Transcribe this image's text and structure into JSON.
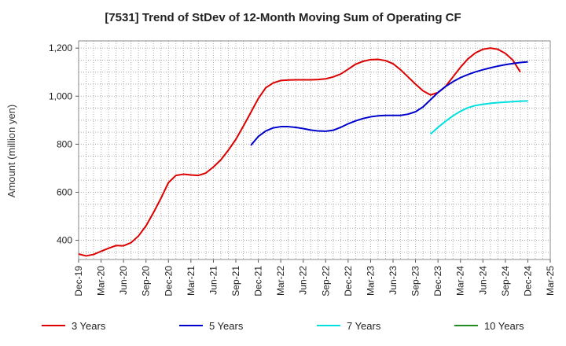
{
  "chart_data": {
    "type": "line",
    "title": "[7531]  Trend of StDev of 12-Month Moving Sum of Operating CF",
    "xlabel": "",
    "ylabel": "Amount (million yen)",
    "ylim": [
      320,
      1230
    ],
    "yticks": [
      400,
      600,
      800,
      1000,
      1200
    ],
    "ytick_labels": [
      "400",
      "600",
      "800",
      "1,000",
      "1,200"
    ],
    "x_range": [
      "Dec-19",
      "Mar-25"
    ],
    "x_tick_labels": [
      "Dec-19",
      "Mar-20",
      "Jun-20",
      "Sep-20",
      "Dec-20",
      "Mar-21",
      "Jun-21",
      "Sep-21",
      "Dec-21",
      "Mar-22",
      "Jun-22",
      "Sep-22",
      "Dec-22",
      "Mar-23",
      "Jun-23",
      "Sep-23",
      "Dec-23",
      "Mar-24",
      "Jun-24",
      "Sep-24",
      "Dec-24",
      "Mar-25"
    ],
    "grid": true,
    "legend_position": "bottom",
    "series": [
      {
        "name": "3 Years",
        "color": "#dd0000",
        "start": "Dec-19",
        "values": [
          343,
          335,
          341,
          354,
          367,
          378,
          377,
          390,
          418,
          460,
          515,
          575,
          640,
          670,
          675,
          672,
          670,
          680,
          705,
          735,
          775,
          820,
          875,
          932,
          990,
          1035,
          1055,
          1065,
          1067,
          1068,
          1068,
          1068,
          1069,
          1072,
          1080,
          1092,
          1112,
          1133,
          1145,
          1152,
          1153,
          1148,
          1135,
          1110,
          1080,
          1050,
          1022,
          1005,
          1015,
          1040,
          1080,
          1120,
          1155,
          1180,
          1195,
          1200,
          1195,
          1178,
          1150,
          1100
        ]
      },
      {
        "name": "5 Years",
        "color": "#0000cc",
        "start": "Nov-21",
        "values": [
          795,
          832,
          855,
          868,
          873,
          873,
          870,
          865,
          859,
          855,
          854,
          858,
          870,
          885,
          897,
          907,
          914,
          918,
          920,
          920,
          920,
          925,
          935,
          955,
          985,
          1015,
          1040,
          1060,
          1077,
          1090,
          1101,
          1110,
          1118,
          1125,
          1131,
          1136,
          1140,
          1143
        ]
      },
      {
        "name": "7 Years",
        "color": "#00e0e0",
        "start": "Nov-23",
        "values": [
          842,
          870,
          895,
          918,
          937,
          952,
          961,
          966,
          970,
          973,
          975,
          977,
          979,
          980
        ]
      },
      {
        "name": "10 Years",
        "color": "#228b22",
        "start": "Dec-24",
        "values": []
      }
    ]
  }
}
